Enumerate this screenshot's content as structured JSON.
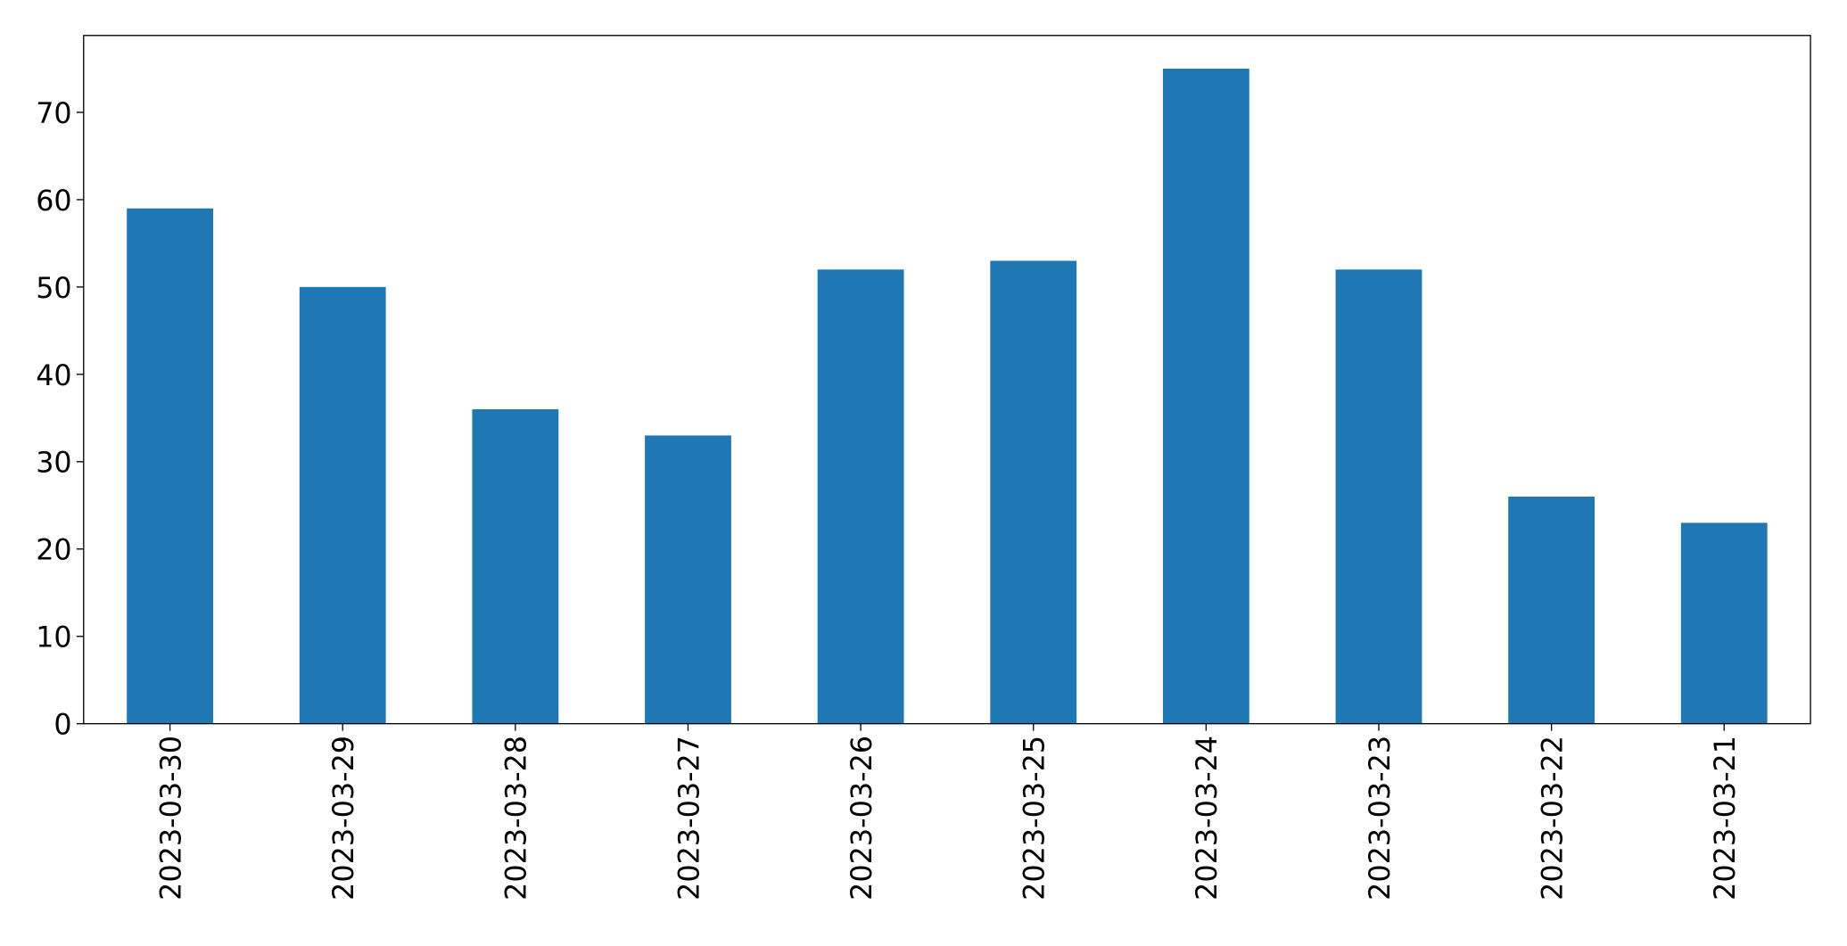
{
  "chart_data": {
    "type": "bar",
    "categories": [
      "2023-03-30",
      "2023-03-29",
      "2023-03-28",
      "2023-03-27",
      "2023-03-26",
      "2023-03-25",
      "2023-03-24",
      "2023-03-23",
      "2023-03-22",
      "2023-03-21"
    ],
    "values": [
      59,
      50,
      36,
      33,
      52,
      53,
      75,
      52,
      26,
      23
    ],
    "color": "#1f77b4",
    "ylim": [
      0,
      78.8
    ],
    "yticks": [
      0,
      10,
      20,
      30,
      40,
      50,
      60,
      70
    ],
    "grid": false
  }
}
